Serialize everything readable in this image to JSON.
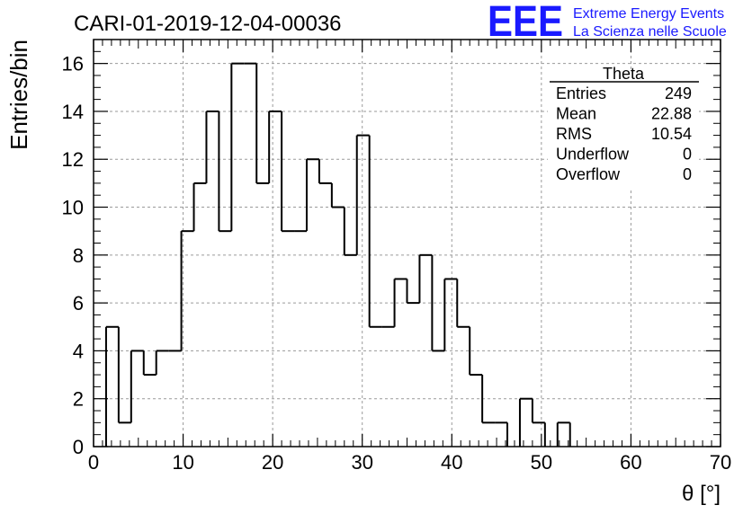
{
  "chart_data": {
    "type": "histogram",
    "title": "CARI-01-2019-12-04-00036",
    "xlabel": "θ [°]",
    "ylabel": "Entries/bin",
    "xlim": [
      0,
      70
    ],
    "ylim": [
      0,
      17
    ],
    "x_ticks": [
      "0",
      "10",
      "20",
      "30",
      "40",
      "50",
      "60",
      "70"
    ],
    "y_ticks": [
      "0",
      "2",
      "4",
      "6",
      "8",
      "10",
      "12",
      "14",
      "16"
    ],
    "grid": true,
    "bin_width": 1.4,
    "bin_start": 0,
    "values": [
      0,
      5,
      1,
      4,
      3,
      4,
      4,
      9,
      11,
      14,
      9,
      16,
      16,
      11,
      14,
      9,
      9,
      12,
      11,
      10,
      8,
      13,
      5,
      5,
      7,
      6,
      8,
      4,
      7,
      5,
      3,
      1,
      1,
      0,
      2,
      1,
      0,
      1,
      0,
      0,
      0,
      0,
      0,
      0,
      0,
      0,
      0,
      0,
      0,
      0
    ]
  },
  "stats": {
    "title": "Theta",
    "rows": [
      {
        "label": "Entries",
        "value": "249"
      },
      {
        "label": "Mean",
        "value": "22.88"
      },
      {
        "label": "RMS",
        "value": "10.54"
      },
      {
        "label": "Underflow",
        "value": "0"
      },
      {
        "label": "Overflow",
        "value": "0"
      }
    ]
  },
  "logo": {
    "mark": "EEE",
    "line1": "Extreme Energy Events",
    "line2": "La Scienza nelle Scuole",
    "color": "#1a1aff"
  }
}
